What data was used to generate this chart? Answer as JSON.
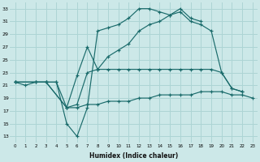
{
  "xlabel": "Humidex (Indice chaleur)",
  "bg_color": "#cce8e8",
  "grid_color": "#add4d4",
  "line_color": "#1a6b6b",
  "x_ticks": [
    0,
    1,
    2,
    3,
    4,
    5,
    6,
    7,
    8,
    9,
    10,
    11,
    12,
    13,
    14,
    15,
    16,
    17,
    18,
    19,
    20,
    21,
    22,
    23
  ],
  "y_ticks": [
    13,
    15,
    17,
    19,
    21,
    23,
    25,
    27,
    29,
    31,
    33
  ],
  "xlim": [
    -0.5,
    23.5
  ],
  "ylim": [
    12,
    34
  ],
  "lines": [
    {
      "x": [
        0,
        1,
        2,
        3,
        4,
        5,
        6,
        7,
        8,
        9,
        10,
        11,
        12,
        13,
        14,
        15,
        16,
        17,
        18
      ],
      "y": [
        21.5,
        21.0,
        21.5,
        21.5,
        21.5,
        15.0,
        13.0,
        17.5,
        29.5,
        30.0,
        30.5,
        31.5,
        33.0,
        33.0,
        32.5,
        32.0,
        33.0,
        31.5,
        31.0
      ]
    },
    {
      "x": [
        0,
        2,
        3,
        5,
        6,
        7,
        8,
        9,
        10,
        11,
        12,
        13,
        14,
        15,
        16,
        17,
        18,
        19,
        20,
        21,
        22
      ],
      "y": [
        21.5,
        21.5,
        21.5,
        17.5,
        22.5,
        27.0,
        23.5,
        25.5,
        26.5,
        27.5,
        29.5,
        30.5,
        31.0,
        32.0,
        32.5,
        31.0,
        30.5,
        29.5,
        23.0,
        20.5,
        20.0
      ]
    },
    {
      "x": [
        0,
        2,
        3,
        5,
        6,
        7,
        8,
        9,
        10,
        11,
        12,
        13,
        14,
        15,
        16,
        17,
        18,
        19,
        20,
        21,
        22
      ],
      "y": [
        21.5,
        21.5,
        21.5,
        17.5,
        18.0,
        23.0,
        23.5,
        23.5,
        23.5,
        23.5,
        23.5,
        23.5,
        23.5,
        23.5,
        23.5,
        23.5,
        23.5,
        23.5,
        23.0,
        20.5,
        20.0
      ]
    },
    {
      "x": [
        0,
        3,
        4,
        5,
        6,
        7,
        8,
        9,
        10,
        11,
        12,
        13,
        14,
        15,
        16,
        17,
        18,
        19,
        20,
        21,
        22,
        23
      ],
      "y": [
        21.5,
        21.5,
        21.5,
        17.5,
        17.5,
        18.0,
        18.0,
        18.5,
        18.5,
        18.5,
        19.0,
        19.0,
        19.5,
        19.5,
        19.5,
        19.5,
        20.0,
        20.0,
        20.0,
        19.5,
        19.5,
        19.0
      ]
    }
  ]
}
